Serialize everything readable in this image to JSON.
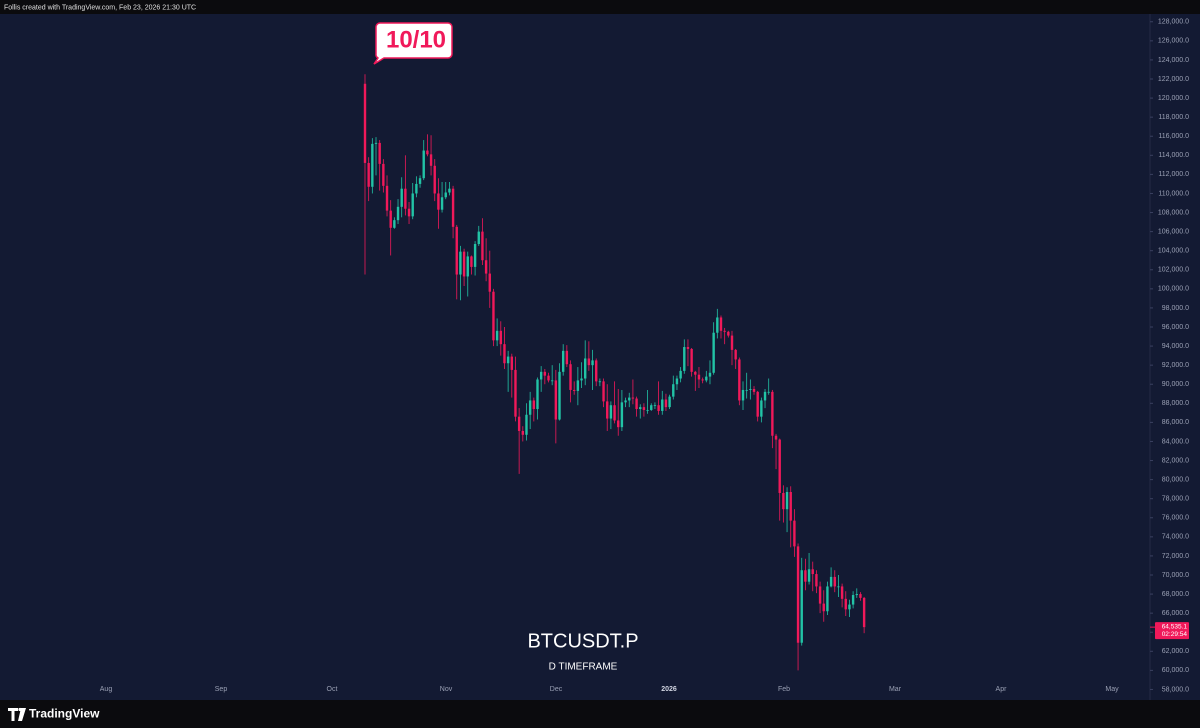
{
  "header": "Follis created with TradingView.com, Feb 23, 2026 21:30 UTC",
  "footer": "TradingView",
  "chart_data": {
    "type": "candlestick",
    "title": "BTCUSDT.P",
    "subtitle": "D TIMEFRAME",
    "annotation": "10/10",
    "up_color": "#22c3a6",
    "down_color": "#f0195a",
    "x_labels": [
      "Aug",
      "Sep",
      "Oct",
      "Nov",
      "Dec",
      "2026",
      "Feb",
      "Mar",
      "Apr",
      "May"
    ],
    "open": [
      121500,
      113200,
      110700,
      115200,
      115300,
      113100,
      110800,
      108200,
      106400,
      107200,
      108600,
      110500,
      108400,
      107600,
      110000,
      111000,
      111600,
      114500,
      114100,
      112900,
      110000,
      108300,
      109600,
      110100,
      110500,
      106500,
      101500,
      103900,
      101300,
      103400,
      102300,
      104700,
      106000,
      103000,
      101600,
      99700,
      94600,
      95600,
      94200,
      92200,
      92900,
      91500,
      86600,
      85100,
      84700,
      86800,
      88300,
      87400,
      90500,
      91300,
      90900,
      90400,
      90400,
      86300,
      91300,
      93500,
      92100,
      89400,
      89300,
      90400,
      90600,
      92700,
      92000,
      92500,
      90300,
      90300,
      88200,
      86400,
      87800,
      86200,
      85500,
      88100,
      88300,
      88600,
      88500,
      87400,
      87600,
      87300,
      87300,
      87800,
      87800,
      87200,
      88400,
      87600,
      88700,
      90000,
      90600,
      91400,
      93900,
      93700,
      91300,
      91000,
      90500,
      90400,
      90800,
      91200,
      95400,
      97000,
      95600,
      95500,
      95100,
      93600,
      92600,
      88300,
      89400,
      89400,
      89500,
      89200,
      86600,
      88300,
      89200,
      89200,
      84600,
      84200,
      78600,
      76900,
      78700,
      75700,
      73000,
      62900,
      70500,
      69300,
      70600,
      70100,
      68800,
      67000,
      66200,
      68800,
      69800,
      68800,
      68800,
      67500,
      66400,
      66900,
      67900,
      68000,
      67600
    ],
    "high": [
      122500,
      113800,
      115800,
      115900,
      115600,
      113600,
      111900,
      109300,
      107500,
      109400,
      111700,
      114000,
      109100,
      111100,
      111800,
      111900,
      115600,
      116200,
      116100,
      113600,
      111600,
      111200,
      111200,
      111200,
      110800,
      106700,
      104500,
      104200,
      103900,
      103500,
      105000,
      106600,
      107400,
      105300,
      104000,
      100000,
      96900,
      96600,
      96000,
      93500,
      93200,
      92900,
      87500,
      85600,
      88000,
      89200,
      88600,
      90700,
      91900,
      91600,
      91200,
      92000,
      91500,
      92200,
      94200,
      94100,
      92500,
      90300,
      91800,
      92300,
      94600,
      94500,
      93600,
      92700,
      90600,
      90600,
      90000,
      88200,
      90300,
      89500,
      89400,
      88600,
      89100,
      90500,
      88700,
      87900,
      88000,
      89400,
      88000,
      88100,
      90300,
      89300,
      89000,
      88900,
      90900,
      90900,
      91800,
      94700,
      94700,
      93800,
      91400,
      91800,
      90700,
      91400,
      92500,
      96500,
      97900,
      97200,
      95900,
      95600,
      95600,
      93700,
      92800,
      90300,
      91200,
      90500,
      89800,
      89300,
      88600,
      89500,
      90600,
      89400,
      84800,
      84300,
      79400,
      79200,
      79300,
      76900,
      73300,
      71800,
      71700,
      72300,
      71400,
      70500,
      69300,
      68400,
      69300,
      70800,
      70500,
      70000,
      69100,
      68300,
      67400,
      68300,
      68600,
      68200,
      67700
    ],
    "low": [
      101500,
      109200,
      110000,
      111900,
      110300,
      110100,
      107600,
      103500,
      106300,
      106800,
      107500,
      107700,
      106800,
      107300,
      109600,
      110600,
      111400,
      113900,
      111900,
      109200,
      106300,
      108000,
      109400,
      109800,
      105300,
      98900,
      98800,
      100300,
      99200,
      101500,
      101400,
      104500,
      102500,
      100800,
      98000,
      94000,
      94000,
      93000,
      91600,
      89200,
      88600,
      86100,
      80600,
      84000,
      84100,
      85300,
      86100,
      86300,
      89200,
      90000,
      90200,
      89900,
      83800,
      86200,
      90900,
      91800,
      88100,
      88900,
      87800,
      89600,
      89900,
      91400,
      89400,
      89800,
      89800,
      87600,
      85100,
      85300,
      85900,
      84600,
      85100,
      87600,
      87600,
      87900,
      86600,
      86400,
      86600,
      86900,
      87200,
      87400,
      86800,
      86800,
      87200,
      87400,
      88400,
      89400,
      90200,
      91100,
      91900,
      90800,
      89300,
      89600,
      90100,
      90200,
      90000,
      91000,
      94800,
      94800,
      94200,
      94900,
      92000,
      91600,
      87800,
      87300,
      88500,
      88400,
      88900,
      86100,
      86000,
      87500,
      88900,
      83300,
      81100,
      75700,
      75500,
      74500,
      72900,
      71900,
      60000,
      62600,
      68400,
      69000,
      68300,
      68100,
      66000,
      65100,
      65800,
      68700,
      68200,
      67700,
      66600,
      65700,
      65600,
      66500,
      67600,
      67300,
      63900
    ],
    "close": [
      113200,
      110700,
      115200,
      115300,
      113100,
      110800,
      108200,
      106400,
      107200,
      108600,
      110500,
      108400,
      107600,
      110000,
      111000,
      111600,
      114500,
      114100,
      112900,
      110000,
      108300,
      109600,
      110100,
      110500,
      106500,
      101500,
      103900,
      101300,
      103400,
      102300,
      104700,
      106000,
      103000,
      101600,
      99700,
      94600,
      95600,
      94200,
      92200,
      92900,
      91500,
      86600,
      85100,
      84700,
      86800,
      88300,
      87400,
      90500,
      91300,
      90900,
      90400,
      90400,
      86300,
      91300,
      93500,
      92100,
      89400,
      89300,
      90400,
      90600,
      92700,
      92000,
      92500,
      90300,
      90300,
      88200,
      86400,
      87800,
      86200,
      85500,
      88100,
      88300,
      88600,
      88500,
      87400,
      87600,
      87300,
      87300,
      87800,
      87800,
      87200,
      88400,
      87600,
      88700,
      90000,
      90600,
      91400,
      93900,
      93700,
      91300,
      91000,
      90500,
      90400,
      90800,
      91200,
      95400,
      97000,
      95600,
      95500,
      95100,
      93600,
      92600,
      88300,
      89400,
      89400,
      89500,
      89200,
      86600,
      88300,
      89200,
      89200,
      84600,
      84200,
      78600,
      76900,
      78700,
      75700,
      73000,
      62900,
      70500,
      69300,
      70600,
      70100,
      68800,
      67000,
      66200,
      68800,
      69800,
      68800,
      68800,
      67500,
      66400,
      66900,
      67900,
      68000,
      67600,
      64535.1
    ],
    "last_price": {
      "value": 64535.1,
      "label": "64,535.1"
    },
    "countdown": "02:29:54",
    "ylim": [
      57000,
      128500
    ],
    "yticks": [
      {
        "value": 58000,
        "label": "58,000.0"
      },
      {
        "value": 60000,
        "label": "60,000.0"
      },
      {
        "value": 62000,
        "label": "62,000.0"
      },
      {
        "value": 64000,
        "label": "64,000.0"
      },
      {
        "value": 66000,
        "label": "66,000.0"
      },
      {
        "value": 68000,
        "label": "68,000.0"
      },
      {
        "value": 70000,
        "label": "70,000.0"
      },
      {
        "value": 72000,
        "label": "72,000.0"
      },
      {
        "value": 74000,
        "label": "74,000.0"
      },
      {
        "value": 76000,
        "label": "76,000.0"
      },
      {
        "value": 78000,
        "label": "78,000.0"
      },
      {
        "value": 80000,
        "label": "80,000.0"
      },
      {
        "value": 82000,
        "label": "82,000.0"
      },
      {
        "value": 84000,
        "label": "84,000.0"
      },
      {
        "value": 86000,
        "label": "86,000.0"
      },
      {
        "value": 88000,
        "label": "88,000.0"
      },
      {
        "value": 90000,
        "label": "90,000.0"
      },
      {
        "value": 92000,
        "label": "92,000.0"
      },
      {
        "value": 94000,
        "label": "94,000.0"
      },
      {
        "value": 96000,
        "label": "96,000.0"
      },
      {
        "value": 98000,
        "label": "98,000.0"
      },
      {
        "value": 100000,
        "label": "100,000.0"
      },
      {
        "value": 102000,
        "label": "102,000.0"
      },
      {
        "value": 104000,
        "label": "104,000.0"
      },
      {
        "value": 106000,
        "label": "106,000.0"
      },
      {
        "value": 108000,
        "label": "108,000.0"
      },
      {
        "value": 110000,
        "label": "110,000.0"
      },
      {
        "value": 112000,
        "label": "112,000.0"
      },
      {
        "value": 114000,
        "label": "114,000.0"
      },
      {
        "value": 116000,
        "label": "116,000.0"
      },
      {
        "value": 118000,
        "label": "118,000.0"
      },
      {
        "value": 120000,
        "label": "120,000.0"
      },
      {
        "value": 122000,
        "label": "122,000.0"
      },
      {
        "value": 124000,
        "label": "124,000.0"
      },
      {
        "value": 126000,
        "label": "126,000.0"
      },
      {
        "value": 128000,
        "label": "128,000.0"
      }
    ]
  }
}
